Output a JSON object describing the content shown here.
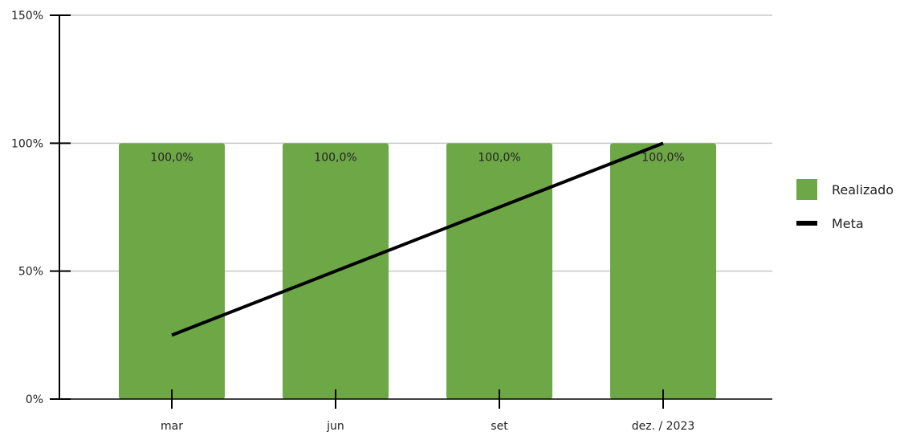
{
  "chart_data": {
    "type": "bar",
    "categories": [
      "mar",
      "jun",
      "set",
      "dez. / 2023"
    ],
    "series": [
      {
        "name": "Realizado",
        "kind": "bar",
        "values": [
          100,
          100,
          100,
          100
        ],
        "data_labels": [
          "100,0%",
          "100,0%",
          "100,0%",
          "100,0%"
        ],
        "color": "#6ea746"
      },
      {
        "name": "Meta",
        "kind": "line",
        "values": [
          25,
          50,
          75,
          100
        ],
        "color": "#000000"
      }
    ],
    "ylim": [
      0,
      150
    ],
    "yticks": [
      0,
      50,
      100,
      150
    ],
    "ytick_labels": [
      "0%",
      "50%",
      "100%",
      "150%"
    ],
    "grid": true,
    "legend_position": "right"
  },
  "legend": {
    "realizado_label": "Realizado",
    "meta_label": "Meta"
  },
  "colors": {
    "bar": "#6ea746",
    "line": "#000000",
    "grid": "#c8c8c8",
    "axis": "#000000"
  }
}
